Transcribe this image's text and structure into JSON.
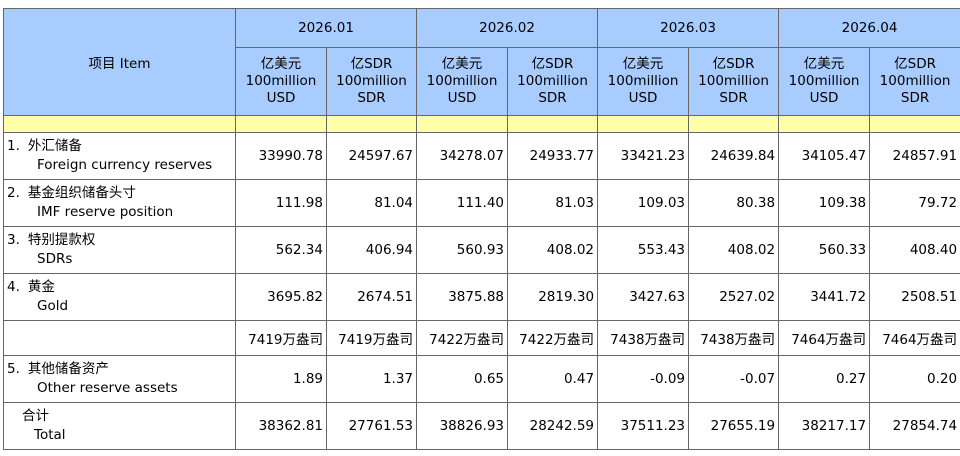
{
  "header": {
    "item_label": "项目  Item",
    "months": [
      "2026.01",
      "2026.02",
      "2026.03",
      "2026.04"
    ],
    "unit_usd": [
      "亿美元",
      "100million",
      "USD"
    ],
    "unit_sdr": [
      "亿SDR",
      "100million",
      "SDR"
    ]
  },
  "rows": [
    {
      "num": "1.",
      "cn": "外汇储备",
      "en": "Foreign currency reserves",
      "values": [
        "33990.78",
        "24597.67",
        "34278.07",
        "24933.77",
        "33421.23",
        "24639.84",
        "34105.47",
        "24857.91"
      ]
    },
    {
      "num": "2.",
      "cn": "基金组织储备头寸",
      "en": "IMF reserve position",
      "values": [
        "111.98",
        "81.04",
        "111.40",
        "81.03",
        "109.03",
        "80.38",
        "109.38",
        "79.72"
      ]
    },
    {
      "num": "3.",
      "cn": "特别提款权",
      "en": "SDRs",
      "values": [
        "562.34",
        "406.94",
        "560.93",
        "408.02",
        "553.43",
        "408.02",
        "560.33",
        "408.40"
      ]
    },
    {
      "num": "4.",
      "cn": "黄金",
      "en": "Gold",
      "values": [
        "3695.82",
        "2674.51",
        "3875.88",
        "2819.30",
        "3427.63",
        "2527.02",
        "3441.72",
        "2508.51"
      ]
    },
    {
      "num": "",
      "cn": "",
      "en": "",
      "values": [
        "7419万盎司",
        "7419万盎司",
        "7422万盎司",
        "7422万盎司",
        "7438万盎司",
        "7438万盎司",
        "7464万盎司",
        "7464万盎司"
      ]
    },
    {
      "num": "5.",
      "cn": "其他储备资产",
      "en": "Other reserve assets",
      "values": [
        "1.89",
        "1.37",
        "0.65",
        "0.47",
        "-0.09",
        "-0.07",
        "0.27",
        "0.20"
      ]
    },
    {
      "num": "",
      "cn": "合计",
      "en": "Total",
      "values": [
        "38362.81",
        "27761.53",
        "38826.93",
        "28242.59",
        "37511.23",
        "27655.19",
        "38217.17",
        "27854.74"
      ]
    }
  ]
}
